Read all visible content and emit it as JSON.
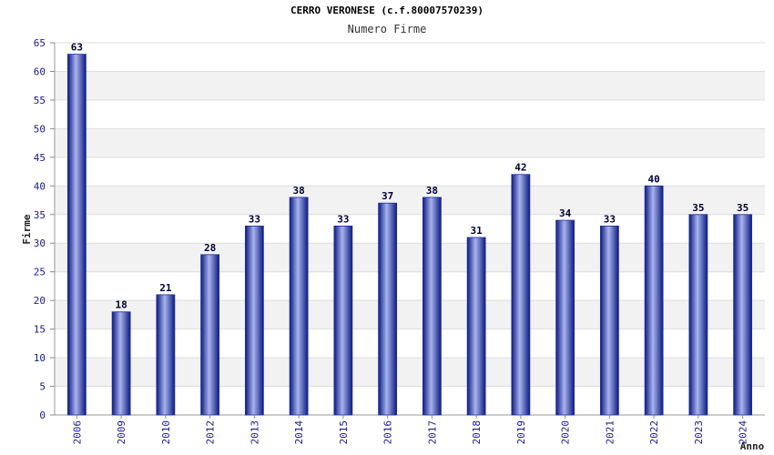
{
  "chart_data": {
    "type": "bar",
    "title": "CERRO VERONESE (c.f.80007570239)",
    "subtitle": "Numero Firme",
    "ylabel": "Firme",
    "xlabel": "Anno",
    "categories": [
      "2006",
      "2009",
      "2010",
      "2012",
      "2013",
      "2014",
      "2015",
      "2016",
      "2017",
      "2018",
      "2019",
      "2020",
      "2021",
      "2022",
      "2023",
      "2024"
    ],
    "values": [
      63,
      18,
      21,
      28,
      33,
      38,
      33,
      37,
      38,
      31,
      42,
      34,
      33,
      40,
      35,
      35
    ],
    "ylim": [
      0,
      65
    ],
    "yticks": [
      0,
      5,
      10,
      15,
      20,
      25,
      30,
      35,
      40,
      45,
      50,
      55,
      60,
      65
    ],
    "grid": true,
    "bar_color": "#1f2f9a",
    "band_color": "#f2f2f2"
  }
}
